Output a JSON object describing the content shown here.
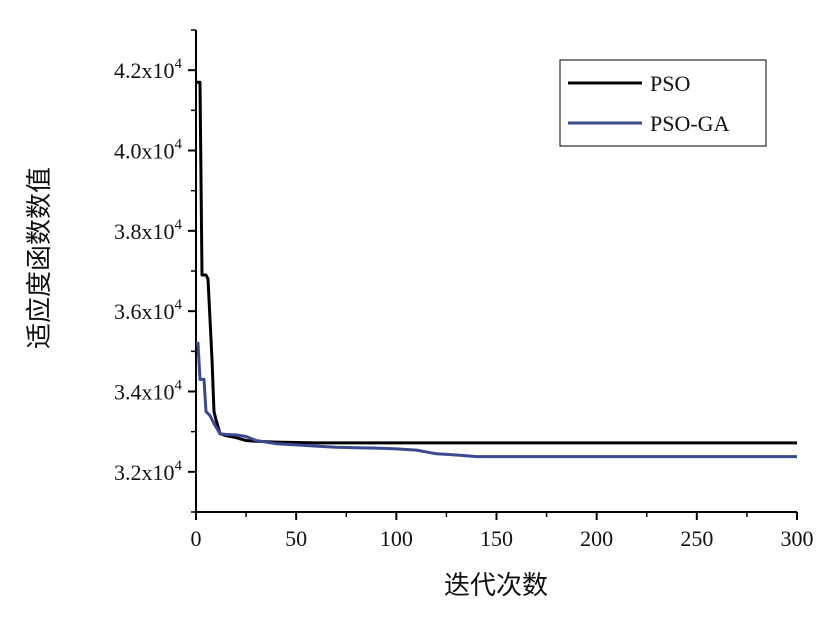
{
  "chart_data": {
    "type": "line",
    "xlabel": "迭代次数",
    "ylabel": "适应度函数数值",
    "xlim": [
      0,
      300
    ],
    "ylim": [
      31000,
      43000
    ],
    "x_ticks": [
      0,
      50,
      100,
      150,
      200,
      250,
      300
    ],
    "y_ticks": [
      {
        "value": 32000,
        "mantissa": "3.2x10",
        "exp": "4"
      },
      {
        "value": 34000,
        "mantissa": "3.4x10",
        "exp": "4"
      },
      {
        "value": 36000,
        "mantissa": "3.6x10",
        "exp": "4"
      },
      {
        "value": 38000,
        "mantissa": "3.8x10",
        "exp": "4"
      },
      {
        "value": 40000,
        "mantissa": "4.0x10",
        "exp": "4"
      },
      {
        "value": 42000,
        "mantissa": "4.2x10",
        "exp": "4"
      }
    ],
    "grid": false,
    "legend_position": "top-right",
    "series": [
      {
        "name": "PSO",
        "color": "#000000",
        "points": [
          [
            0,
            41700
          ],
          [
            2,
            41700
          ],
          [
            3,
            36900
          ],
          [
            5,
            36900
          ],
          [
            6,
            36800
          ],
          [
            8,
            34800
          ],
          [
            9,
            33500
          ],
          [
            10,
            33300
          ],
          [
            12,
            32950
          ],
          [
            15,
            32900
          ],
          [
            20,
            32850
          ],
          [
            25,
            32780
          ],
          [
            30,
            32760
          ],
          [
            40,
            32740
          ],
          [
            50,
            32730
          ],
          [
            60,
            32720
          ],
          [
            80,
            32720
          ],
          [
            100,
            32720
          ],
          [
            150,
            32720
          ],
          [
            200,
            32720
          ],
          [
            250,
            32720
          ],
          [
            300,
            32720
          ]
        ]
      },
      {
        "name": "PSO-GA",
        "color": "#3a4a8e",
        "points": [
          [
            0,
            35200
          ],
          [
            1,
            35200
          ],
          [
            2,
            34300
          ],
          [
            4,
            34300
          ],
          [
            5,
            33500
          ],
          [
            7,
            33400
          ],
          [
            9,
            33200
          ],
          [
            12,
            32950
          ],
          [
            15,
            32930
          ],
          [
            20,
            32920
          ],
          [
            25,
            32880
          ],
          [
            30,
            32780
          ],
          [
            40,
            32700
          ],
          [
            50,
            32670
          ],
          [
            60,
            32640
          ],
          [
            70,
            32610
          ],
          [
            80,
            32600
          ],
          [
            90,
            32590
          ],
          [
            100,
            32570
          ],
          [
            110,
            32540
          ],
          [
            120,
            32450
          ],
          [
            130,
            32420
          ],
          [
            140,
            32380
          ],
          [
            150,
            32380
          ],
          [
            200,
            32380
          ],
          [
            250,
            32380
          ],
          [
            300,
            32380
          ]
        ]
      }
    ]
  }
}
